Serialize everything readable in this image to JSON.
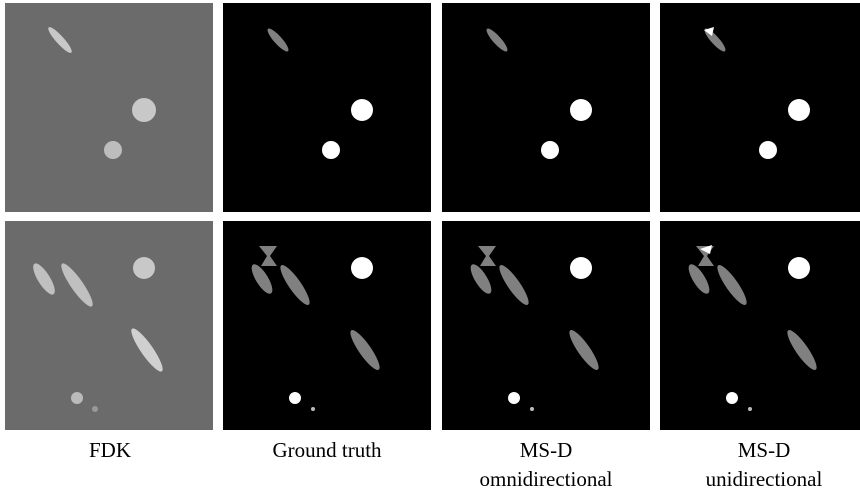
{
  "figure": {
    "captions": [
      [
        "FDK"
      ],
      [
        "Ground truth"
      ],
      [
        "MS-D",
        "omnidirectional"
      ],
      [
        "MS-D",
        "unidirectional"
      ]
    ]
  }
}
